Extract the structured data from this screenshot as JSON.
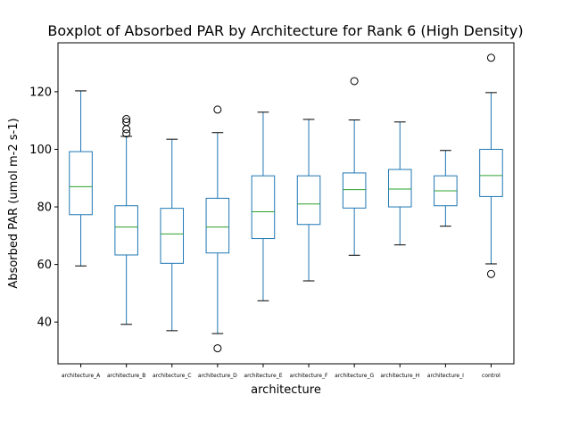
{
  "chart_data": {
    "type": "boxplot",
    "title": "Boxplot of Absorbed PAR by Architecture for Rank 6 (High Density)",
    "xlabel": "architecture",
    "ylabel": "Absorbed PAR (umol m-2 s-1)",
    "ylim": [
      25.5,
      137
    ],
    "yticks": [
      40,
      60,
      80,
      100,
      120
    ],
    "grid": false,
    "colors": {
      "box": "#1f77b4",
      "median": "#2ca02c",
      "outlier": "#000000",
      "frame": "#000000"
    },
    "categories": [
      "architecture_A",
      "architecture_B",
      "architecture_C",
      "architecture_D",
      "architecture_E",
      "architecture_F",
      "architecture_G",
      "architecture_H",
      "architecture_I",
      "control"
    ],
    "boxes": [
      {
        "whislo": 59.5,
        "q1": 77.3,
        "med": 87.0,
        "q3": 99.2,
        "whishi": 120.3,
        "fliers": []
      },
      {
        "whislo": 39.2,
        "q1": 63.3,
        "med": 73.0,
        "q3": 80.4,
        "whishi": 104.5,
        "fliers": [
          105.5,
          107.0,
          109.5,
          110.5
        ]
      },
      {
        "whislo": 37.0,
        "q1": 60.4,
        "med": 70.6,
        "q3": 79.5,
        "whishi": 103.5,
        "fliers": []
      },
      {
        "whislo": 36.0,
        "q1": 64.0,
        "med": 73.0,
        "q3": 83.0,
        "whishi": 105.8,
        "fliers": [
          113.8,
          30.9
        ]
      },
      {
        "whislo": 47.4,
        "q1": 69.0,
        "med": 78.3,
        "q3": 90.8,
        "whishi": 112.9,
        "fliers": []
      },
      {
        "whislo": 54.3,
        "q1": 73.9,
        "med": 81.0,
        "q3": 90.8,
        "whishi": 110.4,
        "fliers": []
      },
      {
        "whislo": 63.2,
        "q1": 79.6,
        "med": 86.0,
        "q3": 91.8,
        "whishi": 110.2,
        "fliers": [
          123.7
        ]
      },
      {
        "whislo": 66.8,
        "q1": 80.0,
        "med": 86.2,
        "q3": 93.0,
        "whishi": 109.5,
        "fliers": []
      },
      {
        "whislo": 73.3,
        "q1": 80.4,
        "med": 85.6,
        "q3": 90.8,
        "whishi": 99.6,
        "fliers": []
      },
      {
        "whislo": 60.2,
        "q1": 83.6,
        "med": 90.9,
        "q3": 100.0,
        "whishi": 119.7,
        "fliers": [
          56.7,
          131.8
        ]
      }
    ]
  }
}
